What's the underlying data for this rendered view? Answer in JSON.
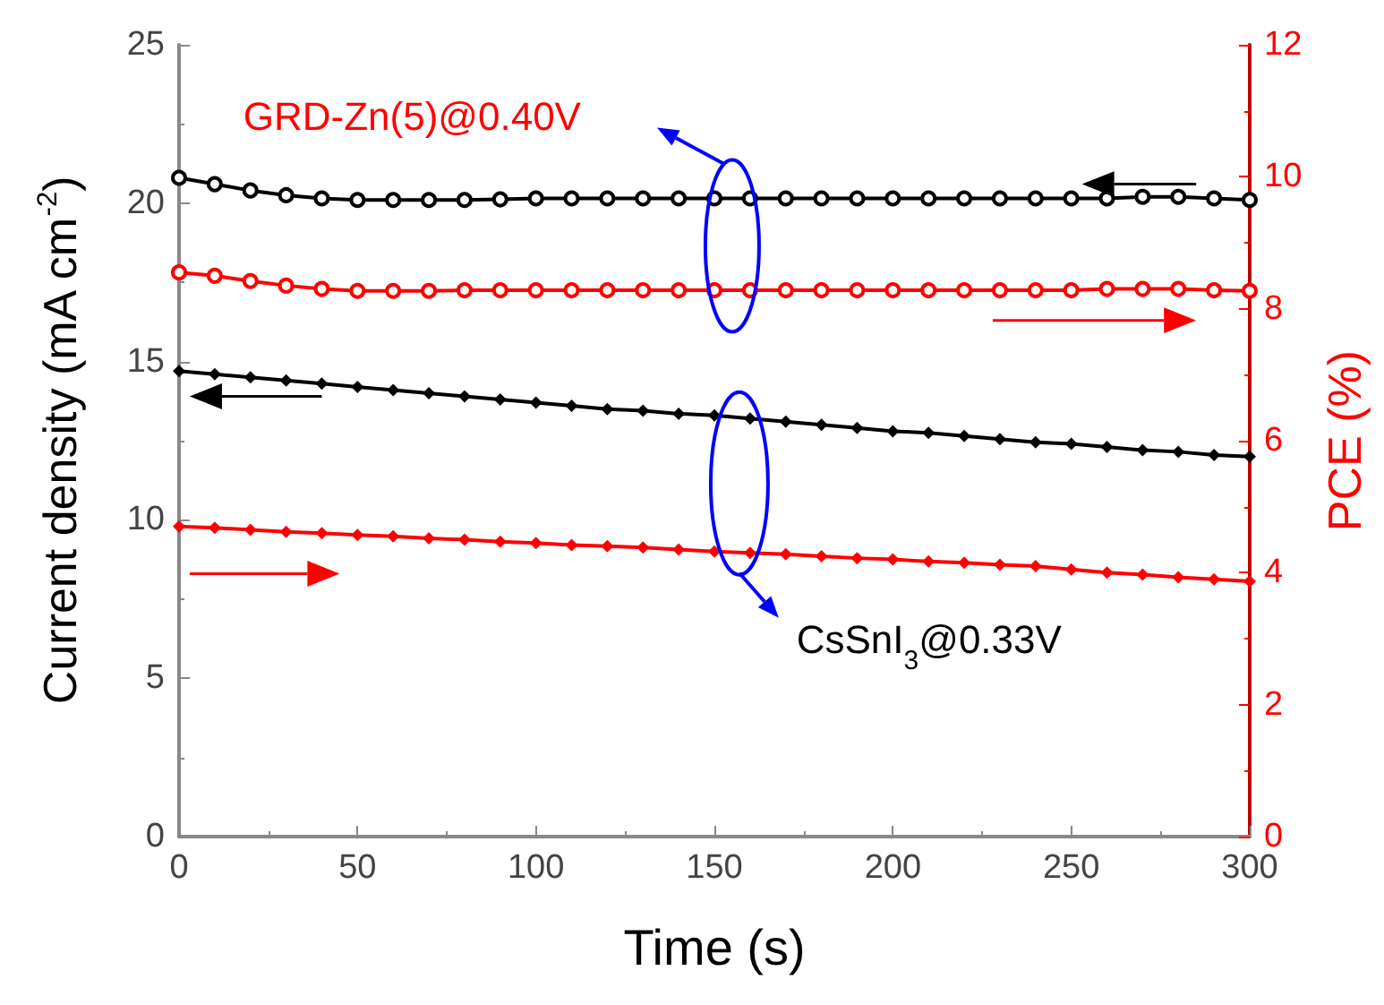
{
  "chart_data": {
    "type": "line",
    "xlabel": "Time (s)",
    "ylabel": "Current density (mA cm$^{-2}$)",
    "y2label": "PCE (%)",
    "xlim": [
      0,
      300
    ],
    "xticks": [
      0,
      50,
      100,
      150,
      200,
      250,
      300
    ],
    "ylim": [
      0,
      25
    ],
    "yticks": [
      0,
      5,
      10,
      15,
      20,
      25
    ],
    "y2lim": [
      0,
      12
    ],
    "y2ticks": [
      0,
      2,
      4,
      6,
      8,
      10,
      12
    ],
    "x": [
      0,
      10,
      20,
      30,
      40,
      50,
      60,
      70,
      80,
      90,
      100,
      110,
      120,
      130,
      140,
      150,
      160,
      170,
      180,
      190,
      200,
      210,
      220,
      230,
      240,
      250,
      260,
      270,
      280,
      290,
      300
    ],
    "series": [
      {
        "color": "#000000",
        "marker": "circle",
        "values": [
          20.8,
          20.6,
          20.4,
          20.25,
          20.15,
          20.1,
          20.1,
          20.1,
          20.1,
          20.12,
          20.15,
          20.15,
          20.15,
          20.15,
          20.15,
          20.15,
          20.15,
          20.15,
          20.15,
          20.15,
          20.15,
          20.15,
          20.15,
          20.15,
          20.15,
          20.15,
          20.15,
          20.2,
          20.2,
          20.15,
          20.1
        ]
      },
      {
        "color": "#ff0000",
        "marker": "circle",
        "axis": "y2",
        "values": [
          8.55,
          8.5,
          8.42,
          8.35,
          8.3,
          8.27,
          8.27,
          8.27,
          8.28,
          8.28,
          8.28,
          8.28,
          8.28,
          8.28,
          8.28,
          8.28,
          8.28,
          8.28,
          8.28,
          8.28,
          8.28,
          8.28,
          8.28,
          8.28,
          8.28,
          8.28,
          8.3,
          8.3,
          8.3,
          8.28,
          8.27
        ]
      },
      {
        "color": "#000000",
        "marker": "diamond",
        "values": [
          14.7,
          14.6,
          14.5,
          14.4,
          14.3,
          14.2,
          14.1,
          14.0,
          13.9,
          13.8,
          13.7,
          13.6,
          13.5,
          13.45,
          13.35,
          13.3,
          13.2,
          13.1,
          13.0,
          12.9,
          12.8,
          12.75,
          12.65,
          12.55,
          12.45,
          12.4,
          12.3,
          12.2,
          12.15,
          12.05,
          12.0
        ]
      },
      {
        "color": "#ff0000",
        "marker": "diamond",
        "axis": "y2",
        "values": [
          4.7,
          4.68,
          4.65,
          4.62,
          4.6,
          4.57,
          4.55,
          4.52,
          4.5,
          4.47,
          4.45,
          4.42,
          4.4,
          4.38,
          4.35,
          4.32,
          4.3,
          4.28,
          4.25,
          4.22,
          4.2,
          4.17,
          4.15,
          4.12,
          4.1,
          4.05,
          4.0,
          3.97,
          3.93,
          3.9,
          3.87
        ]
      }
    ],
    "annotations": [
      "GRD-Zn(5)@0.40V",
      "CsSnI$_{3}$@0.33V"
    ]
  }
}
